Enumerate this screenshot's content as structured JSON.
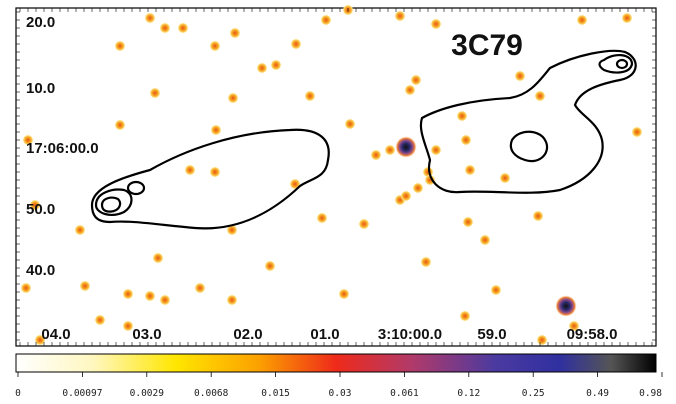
{
  "image": {
    "title": "3C79",
    "x_labels": [
      "04.0",
      "03.0",
      "02.0",
      "01.0",
      "3:10:00.0",
      "59.0",
      "09:58.0"
    ],
    "y_labels": [
      "20.0",
      "10.0",
      "17:06:00.0",
      "50.0",
      "40.0"
    ],
    "colorbar_labels": [
      "0",
      "0.00097",
      "0.0029",
      "0.0068",
      "0.015",
      "0.03",
      "0.061",
      "0.12",
      "0.25",
      "0.49",
      "0.98"
    ]
  }
}
